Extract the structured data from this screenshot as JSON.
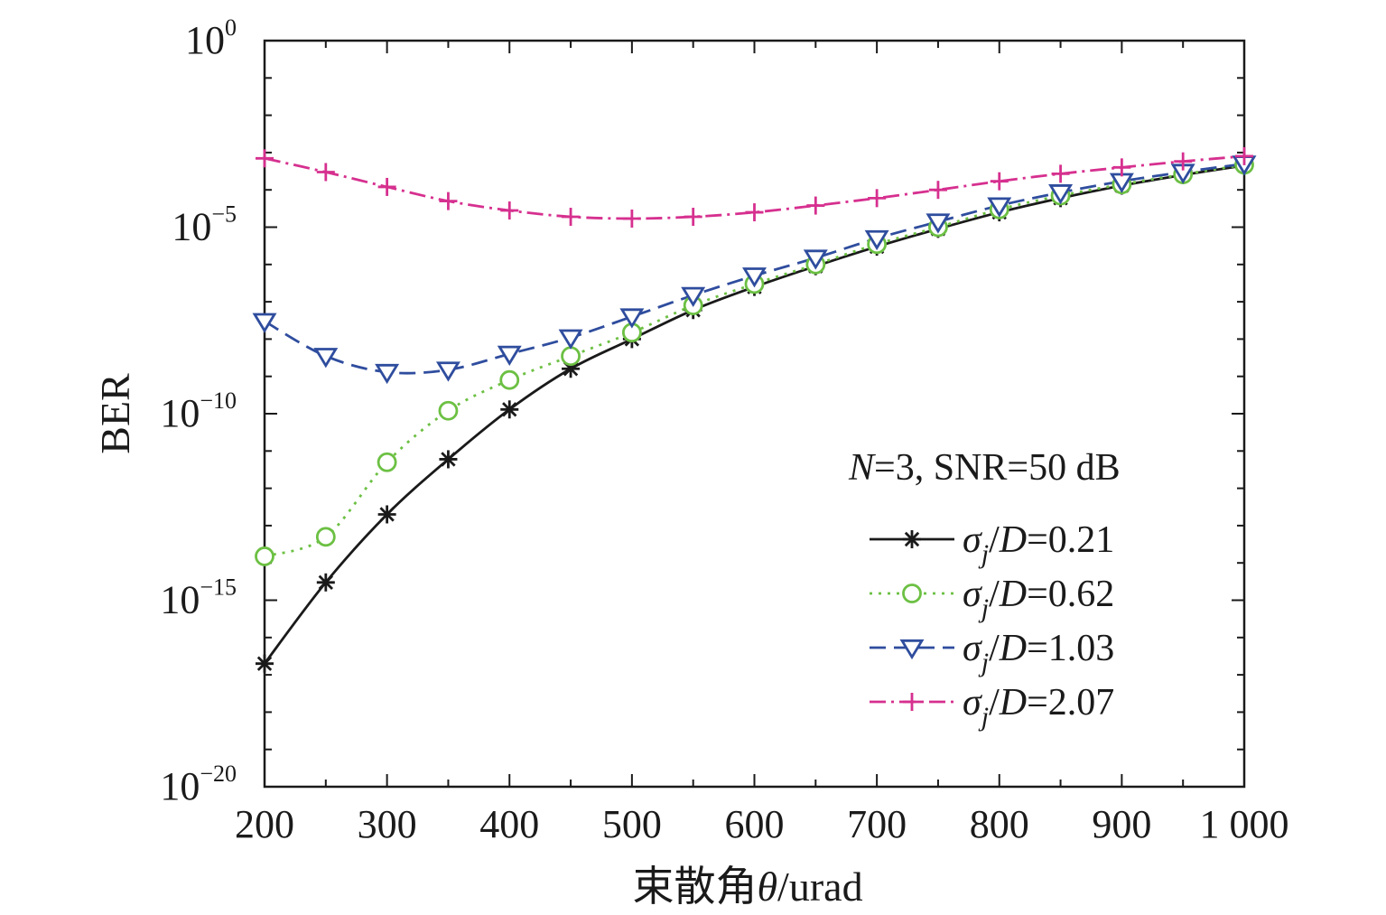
{
  "chart_data": {
    "type": "line",
    "xlabel": "束散角θ/urad",
    "xlabel_parts": {
      "prefix": "束散角",
      "symbol": "θ",
      "suffix": "/urad"
    },
    "ylabel": "BER",
    "x_scale": "linear",
    "y_scale": "log",
    "xlim": [
      200,
      1000
    ],
    "ylim": [
      1e-20,
      1
    ],
    "x_ticks": [
      200,
      300,
      400,
      500,
      600,
      700,
      800,
      900,
      1000
    ],
    "x_tick_labels": [
      "200",
      "300",
      "400",
      "500",
      "600",
      "700",
      "800",
      "900",
      "1 000"
    ],
    "y_ticks": [
      {
        "value": 1e-20,
        "base": "10",
        "exp": "−20"
      },
      {
        "value": 1e-15,
        "base": "10",
        "exp": "−15"
      },
      {
        "value": 1e-10,
        "base": "10",
        "exp": "−10"
      },
      {
        "value": 1e-05,
        "base": "10",
        "exp": "−5"
      },
      {
        "value": 1,
        "base": "10",
        "exp": "0"
      }
    ],
    "annotation": {
      "italic": "N",
      "rest": "=3, SNR=50 dB"
    },
    "legend_position": "right",
    "grid": false,
    "x": [
      200,
      250,
      300,
      350,
      400,
      450,
      500,
      550,
      600,
      650,
      700,
      750,
      800,
      850,
      900,
      950,
      1000
    ],
    "series": [
      {
        "name": "σj/D=0.21",
        "label": {
          "sym": "σ",
          "sub": "j",
          "slash": "/",
          "ital": "D",
          "val": "=0.21"
        },
        "color": "#1a1a1a",
        "dash": "none",
        "marker": "asterisk",
        "values": [
          2e-17,
          3e-15,
          2e-13,
          6e-12,
          1.3e-10,
          1.6e-09,
          1e-08,
          6e-08,
          2.5e-07,
          9e-07,
          3e-06,
          9e-06,
          2.5e-05,
          6e-05,
          0.00013,
          0.00025,
          0.00045
        ]
      },
      {
        "name": "σj/D=0.62",
        "label": {
          "sym": "σ",
          "sub": "j",
          "slash": "/",
          "ital": "D",
          "val": "=0.62"
        },
        "color": "#6cc043",
        "dash": "3 7",
        "marker": "circle",
        "values": [
          1.5e-14,
          5e-14,
          5e-12,
          1.2e-10,
          8e-10,
          3.5e-09,
          1.5e-08,
          8e-08,
          3e-07,
          1e-06,
          3.5e-06,
          1e-05,
          3e-05,
          7e-05,
          0.00014,
          0.00026,
          0.00047
        ]
      },
      {
        "name": "σj/D=1.03",
        "label": {
          "sym": "σ",
          "sub": "j",
          "slash": "/",
          "ital": "D",
          "val": "=1.03"
        },
        "color": "#2f4d9e",
        "dash": "18 9",
        "marker": "triangle-down",
        "values": [
          3e-08,
          3.5e-09,
          1.3e-09,
          1.5e-09,
          4e-09,
          1.1e-08,
          4e-08,
          1.5e-07,
          5e-07,
          1.5e-06,
          5e-06,
          1.4e-05,
          3.8e-05,
          8.5e-05,
          0.00017,
          0.0003,
          0.0005
        ]
      },
      {
        "name": "σj/D=2.07",
        "label": {
          "sym": "σ",
          "sub": "j",
          "slash": "/",
          "ital": "D",
          "val": "=2.07"
        },
        "color": "#d6308f",
        "dash": "18 6 3 6",
        "marker": "plus",
        "values": [
          0.0007,
          0.0003,
          0.00012,
          5e-05,
          2.8e-05,
          1.9e-05,
          1.7e-05,
          1.9e-05,
          2.5e-05,
          3.8e-05,
          6e-05,
          0.0001,
          0.00017,
          0.00027,
          0.0004,
          0.00058,
          0.0008
        ]
      }
    ]
  }
}
